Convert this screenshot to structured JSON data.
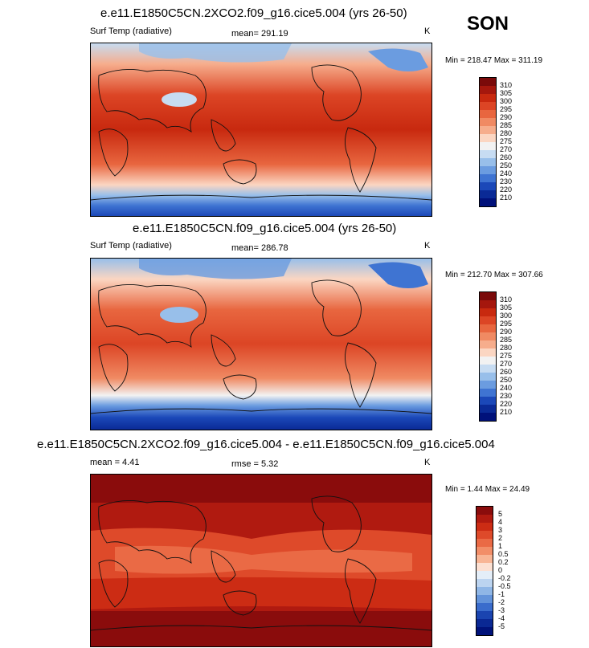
{
  "season": "SON",
  "panels": [
    {
      "title": "e.e11.E1850C5CN.2XCO2.f09_g16.cice5.004 (yrs 26-50)",
      "variable": "Surf Temp (radiative)",
      "stat1": "mean= 291.19",
      "stat2": "",
      "units": "K",
      "minmax": "Min = 218.47 Max = 311.19",
      "colorbar": {
        "labels": [
          "310",
          "305",
          "300",
          "295",
          "290",
          "285",
          "280",
          "275",
          "270",
          "260",
          "250",
          "240",
          "230",
          "220",
          "210"
        ],
        "colors": [
          "#7a0a0a",
          "#a5170d",
          "#c8290f",
          "#dc4525",
          "#e8663f",
          "#f08a63",
          "#f6ad8c",
          "#fbd6c2",
          "#f2f2f2",
          "#c7dcf2",
          "#98bfea",
          "#6b9ce0",
          "#3f74d2",
          "#1b48b8",
          "#0a2a96",
          "#00117a"
        ]
      }
    },
    {
      "title": "e.e11.E1850C5CN.f09_g16.cice5.004 (yrs 26-50)",
      "variable": "Surf Temp (radiative)",
      "stat1": "mean= 286.78",
      "stat2": "",
      "units": "K",
      "minmax": "Min = 212.70 Max = 307.66",
      "colorbar": {
        "labels": [
          "310",
          "305",
          "300",
          "295",
          "290",
          "285",
          "280",
          "275",
          "270",
          "260",
          "250",
          "240",
          "230",
          "220",
          "210"
        ],
        "colors": [
          "#7a0a0a",
          "#a5170d",
          "#c8290f",
          "#dc4525",
          "#e8663f",
          "#f08a63",
          "#f6ad8c",
          "#fbd6c2",
          "#f2f2f2",
          "#c7dcf2",
          "#98bfea",
          "#6b9ce0",
          "#3f74d2",
          "#1b48b8",
          "#0a2a96",
          "#00117a"
        ]
      }
    },
    {
      "title": "e.e11.E1850C5CN.2XCO2.f09_g16.cice5.004 - e.e11.E1850C5CN.f09_g16.cice5.004",
      "variable": "mean =  4.41",
      "stat1": "rmse =  5.32",
      "stat2": "",
      "units": "K",
      "minmax": "Min =  1.44 Max =  24.49",
      "colorbar": {
        "labels": [
          "5",
          "4",
          "3",
          "2",
          "1",
          "0.5",
          "0.2",
          "0",
          "-0.2",
          "-0.5",
          "-1",
          "-2",
          "-3",
          "-4",
          "-5"
        ],
        "colors": [
          "#8a0c0c",
          "#b01a10",
          "#cc2c14",
          "#de4a2a",
          "#ea6a45",
          "#f28e68",
          "#f8b595",
          "#fce0d2",
          "#e4eef8",
          "#bcd4f0",
          "#8fb6e6",
          "#6393da",
          "#3a6ccc",
          "#1a44b0",
          "#0a2894",
          "#00127a"
        ]
      }
    }
  ]
}
